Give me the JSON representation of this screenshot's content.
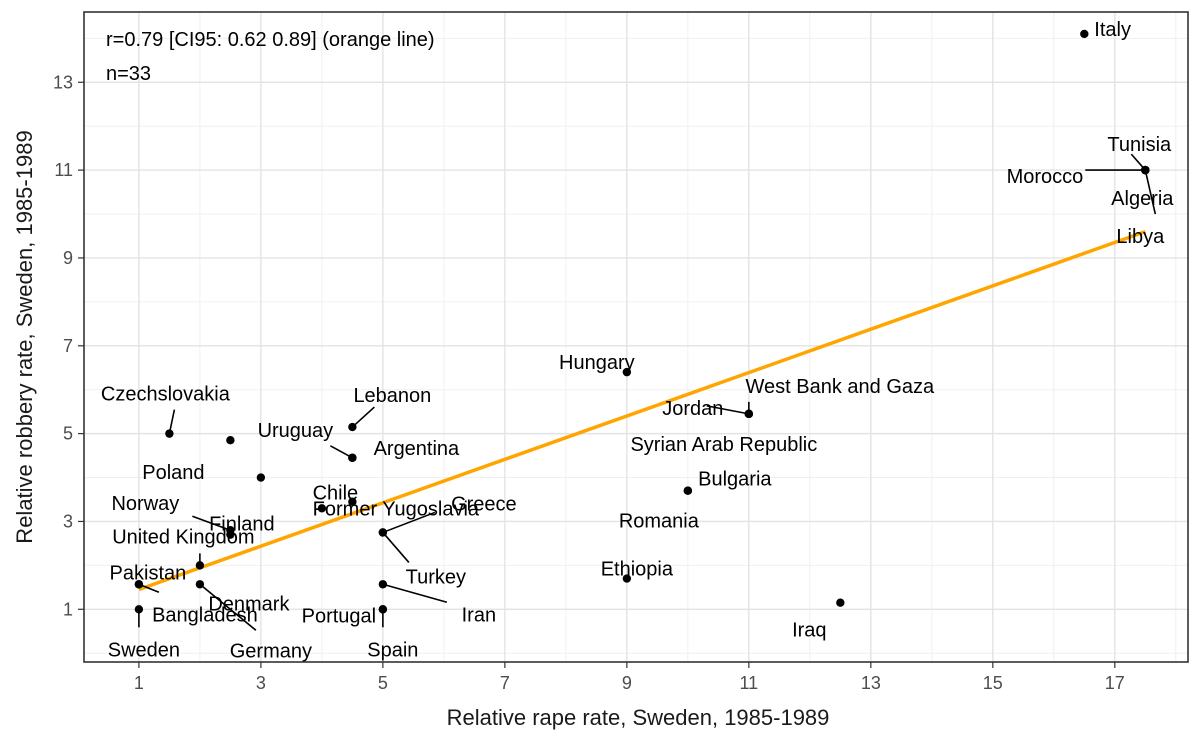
{
  "chart_data": {
    "type": "scatter",
    "title": "",
    "xlabel": "Relative rape rate, Sweden, 1985-1989",
    "ylabel": "Relative robbery rate, Sweden, 1985-1989",
    "xlim": [
      0.1,
      18.2
    ],
    "ylim": [
      -0.2,
      14.6
    ],
    "x_ticks": [
      1,
      3,
      5,
      7,
      9,
      11,
      13,
      15,
      17
    ],
    "y_ticks": [
      1,
      3,
      5,
      7,
      9,
      11,
      13
    ],
    "grid": true,
    "annotations": [
      "r=0.79 [CI95: 0.62 0.89] (orange line)",
      "n=33"
    ],
    "fit_line": {
      "color": "#FFA500",
      "points": [
        [
          1,
          1.45
        ],
        [
          17.5,
          9.6
        ]
      ]
    },
    "points": [
      {
        "label": "Italy",
        "x": 16.5,
        "y": 14.1
      },
      {
        "label": "Tunisia",
        "x": 17.5,
        "y": 11.0
      },
      {
        "label": "Morocco",
        "x": 17.5,
        "y": 11.0
      },
      {
        "label": "Algeria",
        "x": 17.5,
        "y": 11.0
      },
      {
        "label": "Libya",
        "x": 17.5,
        "y": 11.0
      },
      {
        "label": "Hungary",
        "x": 9.0,
        "y": 6.4
      },
      {
        "label": "West Bank and Gaza",
        "x": 11.0,
        "y": 5.45
      },
      {
        "label": "Jordan",
        "x": 11.0,
        "y": 5.45
      },
      {
        "label": "Syrian Arab Republic",
        "x": 11.0,
        "y": 5.45
      },
      {
        "label": "Bulgaria",
        "x": 10.0,
        "y": 3.7
      },
      {
        "label": "Romania",
        "x": 10.0,
        "y": 3.7
      },
      {
        "label": "Ethiopia",
        "x": 9.0,
        "y": 1.7
      },
      {
        "label": "Iraq",
        "x": 12.5,
        "y": 1.15
      },
      {
        "label": "Czechslovakia",
        "x": 1.5,
        "y": 5.0
      },
      {
        "label": "Poland",
        "x": 2.5,
        "y": 4.85
      },
      {
        "label": "Lebanon",
        "x": 4.5,
        "y": 5.15
      },
      {
        "label": "Uruguay",
        "x": 4.5,
        "y": 4.45
      },
      {
        "label": "Argentina",
        "x": 4.5,
        "y": 4.45
      },
      {
        "label": "Finland",
        "x": 3.0,
        "y": 4.0
      },
      {
        "label": "Chile",
        "x": 4.5,
        "y": 3.45
      },
      {
        "label": "Norway",
        "x": 2.5,
        "y": 2.8
      },
      {
        "label": "United Kingdom",
        "x": 2.5,
        "y": 2.7
      },
      {
        "label": "Former Yugoslavia",
        "x": 4.0,
        "y": 3.3
      },
      {
        "label": "Greece",
        "x": 5.0,
        "y": 2.75
      },
      {
        "label": "Turkey",
        "x": 5.0,
        "y": 2.75
      },
      {
        "label": "Pakistan",
        "x": 1.0,
        "y": 1.57
      },
      {
        "label": "Denmark",
        "x": 2.0,
        "y": 2.0
      },
      {
        "label": "Bangladesh",
        "x": 1.0,
        "y": 1.57
      },
      {
        "label": "Sweden",
        "x": 1.0,
        "y": 1.0
      },
      {
        "label": "Germany",
        "x": 2.0,
        "y": 1.57
      },
      {
        "label": "Portugal",
        "x": 5.0,
        "y": 1.0
      },
      {
        "label": "Spain",
        "x": 5.0,
        "y": 1.0
      },
      {
        "label": "Iran",
        "x": 5.0,
        "y": 1.57
      }
    ]
  }
}
